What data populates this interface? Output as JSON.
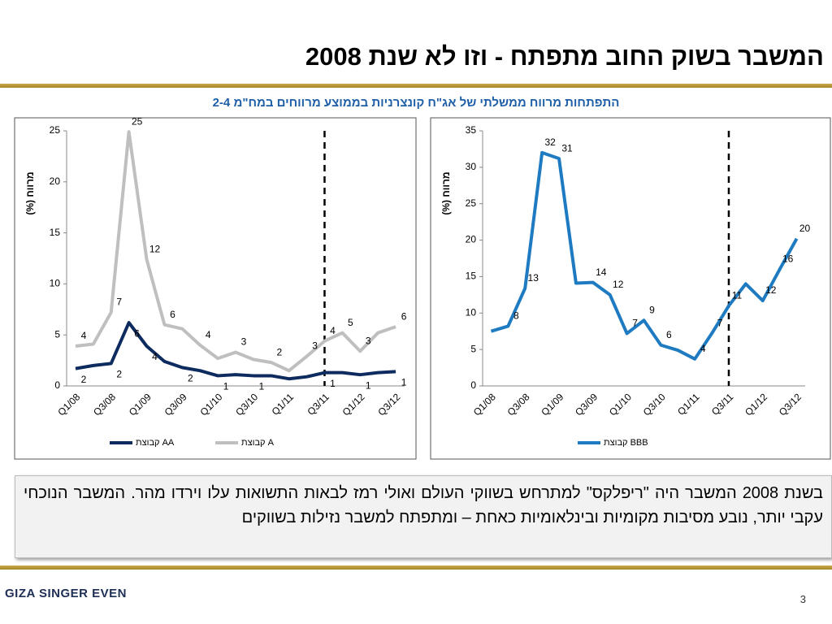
{
  "title": "המשבר בשוק החוב מתפתח - וזו לא שנת 2008",
  "subtitle": "התפתחות מרווח ממשלתי של אג\"ח קונצרניות בממוצע מרווחים במח\"מ 2-4",
  "chart_data": [
    {
      "type": "line",
      "ylabel": "מרווח (%)",
      "categories": [
        "Q1/08",
        null,
        "Q3/08",
        null,
        "Q1/09",
        null,
        "Q3/09",
        null,
        "Q1/10",
        null,
        "Q3/10",
        null,
        "Q1/11",
        null,
        "Q3/11",
        null,
        "Q1/12",
        null,
        "Q3/12"
      ],
      "ylim": [
        0,
        25
      ],
      "yticks": [
        0,
        5,
        10,
        15,
        20,
        25
      ],
      "legend": "bottom",
      "series": [
        {
          "name": "קבוצת AA",
          "color": "#0d2b5e",
          "values": [
            1.7,
            2.0,
            2.2,
            6.2,
            3.9,
            2.4,
            1.8,
            1.5,
            1.0,
            1.1,
            1.0,
            1.0,
            0.7,
            0.9,
            1.3,
            1.3,
            1.1,
            1.3,
            1.4
          ],
          "value_labels": [
            "2",
            null,
            "2",
            "6",
            "4",
            null,
            "2",
            null,
            "1",
            null,
            "1",
            null,
            null,
            null,
            "1",
            null,
            "1",
            null,
            "1"
          ]
        },
        {
          "name": "קבוצת A",
          "color": "#bfbfbf",
          "values": [
            3.9,
            4.1,
            7.2,
            24.9,
            12.4,
            6.0,
            5.6,
            4.0,
            2.7,
            3.3,
            2.6,
            2.3,
            1.5,
            2.9,
            4.4,
            5.2,
            3.4,
            5.2,
            5.8
          ],
          "value_labels": [
            "4",
            null,
            "7",
            "25",
            "12",
            "6",
            null,
            "4",
            null,
            "3",
            null,
            "2",
            null,
            "3",
            "4",
            "5",
            "3",
            null,
            "6"
          ]
        }
      ]
    },
    {
      "type": "line",
      "ylabel": "מרווח (%)",
      "categories": [
        "Q1/08",
        null,
        "Q3/08",
        null,
        "Q1/09",
        null,
        "Q3/09",
        null,
        "Q1/10",
        null,
        "Q3/10",
        null,
        "Q1/11",
        null,
        "Q3/11",
        null,
        "Q1/12",
        null,
        "Q3/12"
      ],
      "ylim": [
        0,
        35
      ],
      "yticks": [
        0,
        5,
        10,
        15,
        20,
        25,
        30,
        35
      ],
      "legend": "bottom",
      "series": [
        {
          "name": "קבוצת BBB",
          "color": "#1f7bc1",
          "values": [
            7.5,
            8.2,
            13.4,
            32.0,
            31.2,
            14.1,
            14.2,
            12.5,
            7.2,
            9.0,
            5.6,
            4.9,
            3.7,
            7.2,
            11.0,
            14.0,
            11.7,
            16.0,
            20.2
          ],
          "value_labels": [
            null,
            "8",
            "13",
            "32",
            "31",
            null,
            "14",
            "12",
            "7",
            "9",
            "6",
            null,
            "4",
            "7",
            "11",
            null,
            "12",
            "16",
            "20"
          ]
        }
      ]
    }
  ],
  "body_text": "בשנת 2008 המשבר היה \"ריפלקס\" למתרחש בשווקי העולם ואולי רמז לבאות התשואות עלו וירדו מהר. המשבר הנוכחי עקבי יותר, נובע מסיבות מקומיות ובינלאומיות כאחת – ומתפתח למשבר נזילות בשווקים",
  "logo": "GIZA SINGER EVEN",
  "page_number": "3"
}
